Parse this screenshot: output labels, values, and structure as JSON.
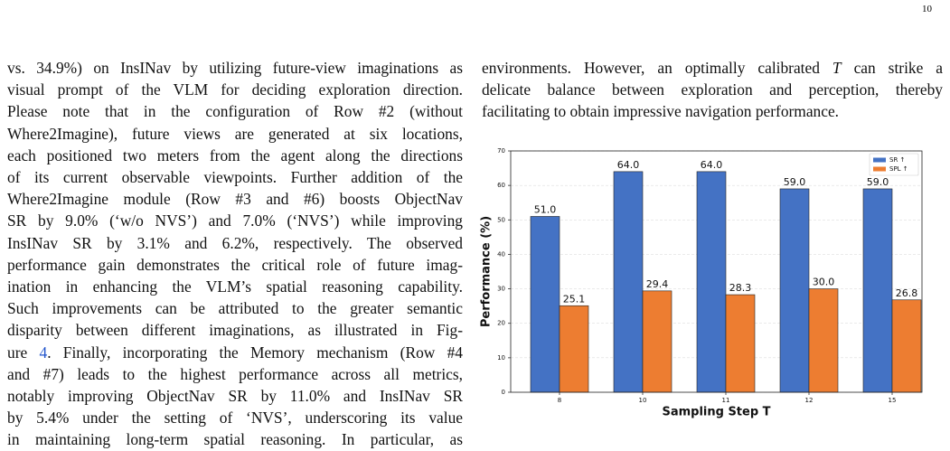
{
  "page_number": "10",
  "left_column": {
    "lines": [
      "vs. 34.9%) on InsINav by utilizing future-view imaginations as",
      "visual prompt of the VLM for deciding exploration direction.",
      "Please note that in the configuration of Row #2 (without",
      "Where2Imagine), future views are generated at six locations,",
      "each positioned two meters from the agent along the directions",
      "of its current observable viewpoints. Further addition of the",
      "Where2Imagine module (Row #3 and #6) boosts ObjectNav",
      "SR by 9.0% (‘w/o NVS’) and 7.0% (‘NVS’) while improving",
      "InsINav SR by 3.1% and 6.2%, respectively. The observed",
      "performance gain demonstrates the critical role of future imag-",
      "ination in enhancing the VLM’s spatial reasoning capability.",
      "Such improvements can be attributed to the greater semantic",
      "disparity between different imaginations, as illustrated in Fig-",
      {
        "parts": [
          "ure ",
          "4",
          ". Finally, incorporating the Memory mechanism (Row #4"
        ],
        "style": "link"
      },
      "and #7) leads to the highest performance across all metrics,",
      "notably improving ObjectNav SR by 11.0% and InsINav SR",
      "by 5.4% under the setting of ‘NVS’, underscoring its value",
      "in maintaining long-term spatial reasoning. In particular, as"
    ]
  },
  "right_column": {
    "lines": [
      {
        "parts": [
          "environments. However, an optimally calibrated ",
          "T",
          " can strike a"
        ],
        "style": "italic"
      },
      "delicate balance between exploration and perception, thereby",
      "facilitating to obtain impressive navigation performance."
    ]
  },
  "chart_data": {
    "type": "bar",
    "x_label": "Sampling Step T",
    "y_label": "Performance (%)",
    "categories": [
      "8",
      "10",
      "11",
      "12",
      "15"
    ],
    "series": [
      {
        "name": "SR ↑",
        "color": "#4472c4",
        "values": [
          51,
          64,
          64,
          59,
          59
        ],
        "value_labels": [
          "51.0",
          "64.0",
          "64.0",
          "59.0",
          "59.0"
        ]
      },
      {
        "name": "SPL ↑",
        "color": "#ed7d31",
        "values": [
          25.1,
          29.4,
          28.3,
          30,
          26.8
        ],
        "value_labels": [
          "25.1",
          "29.4",
          "28.3",
          "30.0",
          "26.8"
        ]
      }
    ],
    "ylim": [
      0,
      70
    ],
    "yticks": [
      0,
      10,
      20,
      30,
      40,
      50,
      60,
      70
    ],
    "grid": true,
    "legend": "upper right"
  }
}
